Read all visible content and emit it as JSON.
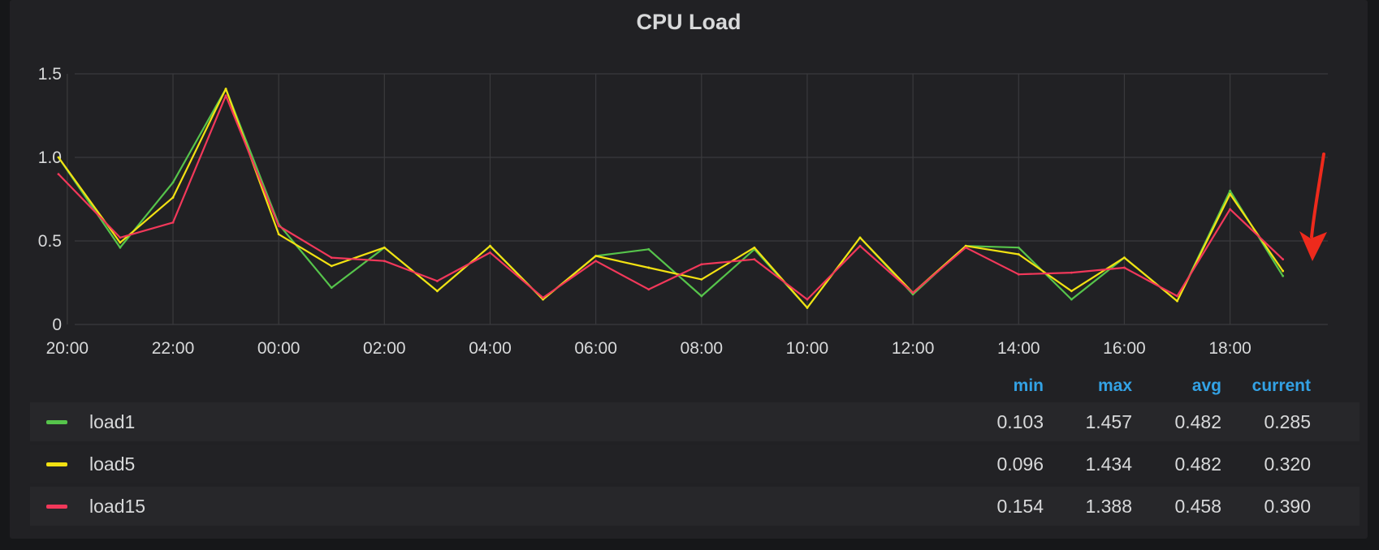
{
  "panel": {
    "title": "CPU Load"
  },
  "colors": {
    "load1": "#56c44b",
    "load5": "#f2e112",
    "load15": "#f2385a",
    "arrow": "#ee2a1c",
    "header": "#33a2e5"
  },
  "chart_data": {
    "type": "line",
    "title": "CPU Load",
    "x": [
      "19:50",
      "21:00",
      "22:00",
      "23:00",
      "00:00",
      "01:00",
      "02:00",
      "03:00",
      "04:00",
      "05:00",
      "06:00",
      "07:00",
      "08:00",
      "09:00",
      "10:00",
      "11:00",
      "12:00",
      "13:00",
      "14:00",
      "15:00",
      "16:00",
      "17:00",
      "18:00",
      "19:00"
    ],
    "x_ticks": [
      "20:00",
      "22:00",
      "00:00",
      "02:00",
      "04:00",
      "06:00",
      "08:00",
      "10:00",
      "12:00",
      "14:00",
      "16:00",
      "18:00"
    ],
    "y_ticks": [
      "0",
      "0.5",
      "1.0",
      "1.5"
    ],
    "ylim": [
      0,
      1.5
    ],
    "grid": true,
    "series": [
      {
        "name": "load1",
        "values": [
          1.0,
          0.46,
          0.85,
          1.41,
          0.6,
          0.22,
          0.46,
          0.2,
          0.47,
          0.15,
          0.41,
          0.45,
          0.17,
          0.45,
          0.1,
          0.52,
          0.18,
          0.47,
          0.46,
          0.15,
          0.4,
          0.14,
          0.8,
          0.29
        ]
      },
      {
        "name": "load5",
        "values": [
          1.0,
          0.49,
          0.76,
          1.41,
          0.54,
          0.35,
          0.46,
          0.2,
          0.47,
          0.15,
          0.41,
          0.34,
          0.27,
          0.46,
          0.1,
          0.52,
          0.19,
          0.47,
          0.42,
          0.2,
          0.4,
          0.14,
          0.78,
          0.32
        ]
      },
      {
        "name": "load15",
        "values": [
          0.9,
          0.52,
          0.61,
          1.37,
          0.59,
          0.4,
          0.38,
          0.26,
          0.43,
          0.16,
          0.38,
          0.21,
          0.36,
          0.39,
          0.15,
          0.47,
          0.19,
          0.46,
          0.3,
          0.31,
          0.34,
          0.17,
          0.69,
          0.39
        ]
      }
    ]
  },
  "legend": {
    "headers": [
      "min",
      "max",
      "avg",
      "current"
    ],
    "rows": [
      {
        "name": "load1",
        "min": "0.103",
        "max": "1.457",
        "avg": "0.482",
        "current": "0.285"
      },
      {
        "name": "load5",
        "min": "0.096",
        "max": "1.434",
        "avg": "0.482",
        "current": "0.320"
      },
      {
        "name": "load15",
        "min": "0.154",
        "max": "1.388",
        "avg": "0.458",
        "current": "0.390"
      }
    ]
  }
}
